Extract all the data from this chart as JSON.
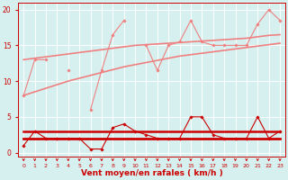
{
  "x": [
    0,
    1,
    2,
    3,
    4,
    5,
    6,
    7,
    8,
    9,
    10,
    11,
    12,
    13,
    14,
    15,
    16,
    17,
    18,
    19,
    20,
    21,
    22,
    23
  ],
  "series": [
    {
      "name": "rafales_zigzag",
      "y": [
        8,
        13,
        13,
        null,
        11.5,
        null,
        6,
        11.5,
        16.5,
        18.5,
        null,
        15,
        11.5,
        15,
        15.5,
        18.5,
        15.5,
        15,
        15,
        15,
        15,
        18,
        20,
        18.5
      ],
      "color": "#f08080",
      "lw": 0.8,
      "marker": "D",
      "ms": 1.8,
      "zorder": 3
    },
    {
      "name": "trend_upper",
      "y": [
        13,
        13.2,
        13.4,
        13.6,
        13.8,
        14.0,
        14.2,
        14.4,
        14.6,
        14.8,
        15.0,
        15.1,
        15.2,
        15.3,
        15.4,
        15.5,
        15.6,
        15.7,
        15.8,
        15.9,
        16.0,
        16.2,
        16.4,
        16.5
      ],
      "color": "#f08080",
      "lw": 1.2,
      "marker": null,
      "ms": 0,
      "zorder": 2
    },
    {
      "name": "trend_lower",
      "y": [
        8,
        8.5,
        9.0,
        9.5,
        10.0,
        10.4,
        10.8,
        11.2,
        11.6,
        12.0,
        12.3,
        12.6,
        12.9,
        13.2,
        13.5,
        13.7,
        13.9,
        14.1,
        14.3,
        14.5,
        14.7,
        14.9,
        15.1,
        15.3
      ],
      "color": "#f08080",
      "lw": 1.2,
      "marker": null,
      "ms": 0,
      "zorder": 2
    },
    {
      "name": "moyen_zigzag",
      "y": [
        1,
        3,
        2,
        2,
        2,
        2,
        0.5,
        0.5,
        3.5,
        4,
        3,
        2.5,
        2,
        2,
        2,
        5,
        5,
        2.5,
        2,
        2,
        2,
        5,
        2,
        3
      ],
      "color": "#cc0000",
      "lw": 0.8,
      "marker": "D",
      "ms": 1.8,
      "zorder": 4
    },
    {
      "name": "flat_high",
      "y": [
        3,
        3,
        3,
        3,
        3,
        3,
        3,
        3,
        3,
        3,
        3,
        3,
        3,
        3,
        3,
        3,
        3,
        3,
        3,
        3,
        3,
        3,
        3,
        3
      ],
      "color": "#cc0000",
      "lw": 1.8,
      "marker": null,
      "ms": 0,
      "zorder": 3
    },
    {
      "name": "flat_low",
      "y": [
        2,
        2,
        2,
        2,
        2,
        2,
        2,
        2,
        2,
        2,
        2,
        2,
        2,
        2,
        2,
        2,
        2,
        2,
        2,
        2,
        2,
        2,
        2,
        2
      ],
      "color": "#cc0000",
      "lw": 2.0,
      "marker": null,
      "ms": 0,
      "zorder": 3
    }
  ],
  "xlabel": "Vent moyen/en rafales ( km/h )",
  "xlim": [
    -0.5,
    23.5
  ],
  "ylim": [
    -0.5,
    21
  ],
  "yticks": [
    0,
    5,
    10,
    15,
    20
  ],
  "xticks": [
    0,
    1,
    2,
    3,
    4,
    5,
    6,
    7,
    8,
    9,
    10,
    11,
    12,
    13,
    14,
    15,
    16,
    17,
    18,
    19,
    20,
    21,
    22,
    23
  ],
  "bg_color": "#d6f0f0",
  "grid_color": "#ffffff",
  "tick_color": "#cc0000",
  "label_color": "#cc0000",
  "figsize": [
    3.2,
    2.0
  ],
  "dpi": 100
}
